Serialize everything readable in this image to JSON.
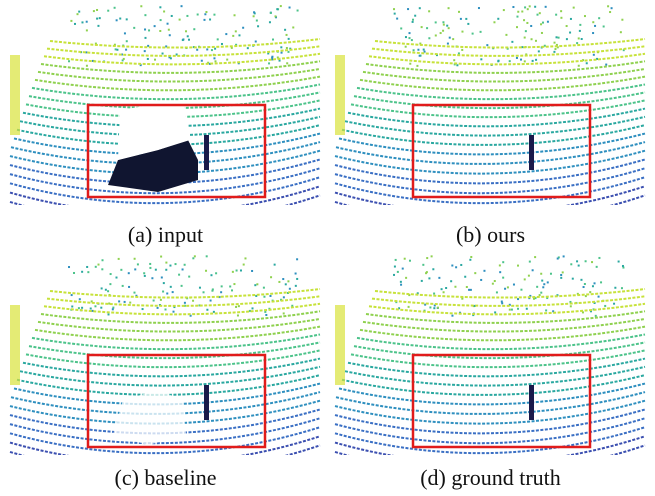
{
  "panels": [
    {
      "caption": "(a) input"
    },
    {
      "caption": "(b) ours"
    },
    {
      "caption": "(c) baseline"
    },
    {
      "caption": "(d) ground truth"
    }
  ]
}
